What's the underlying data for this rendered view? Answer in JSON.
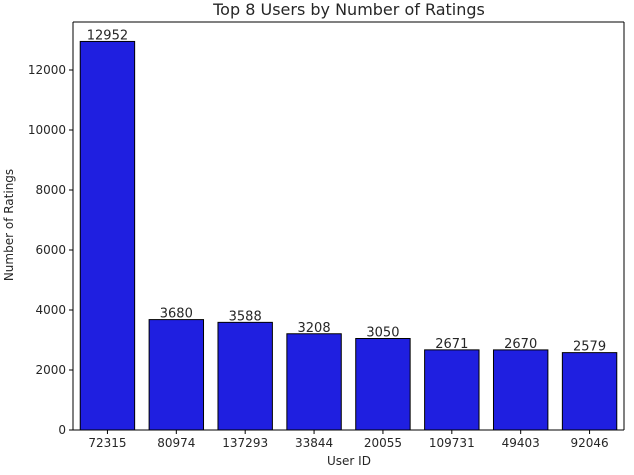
{
  "chart_data": {
    "type": "bar",
    "title": "Top 8 Users by Number of Ratings",
    "xlabel": "User ID",
    "ylabel": "Number of Ratings",
    "categories": [
      "72315",
      "80974",
      "137293",
      "33844",
      "20055",
      "109731",
      "49403",
      "92046"
    ],
    "values": [
      12952,
      3680,
      3588,
      3208,
      3050,
      2671,
      2670,
      2579
    ],
    "ylim": [
      0,
      13600
    ],
    "yticks": [
      0,
      2000,
      4000,
      6000,
      8000,
      10000,
      12000
    ],
    "grid": false,
    "colors": {
      "bar_fill": "#1f1fe0",
      "bar_edge": "#000000",
      "axis": "#000000",
      "text": "#262626"
    }
  }
}
